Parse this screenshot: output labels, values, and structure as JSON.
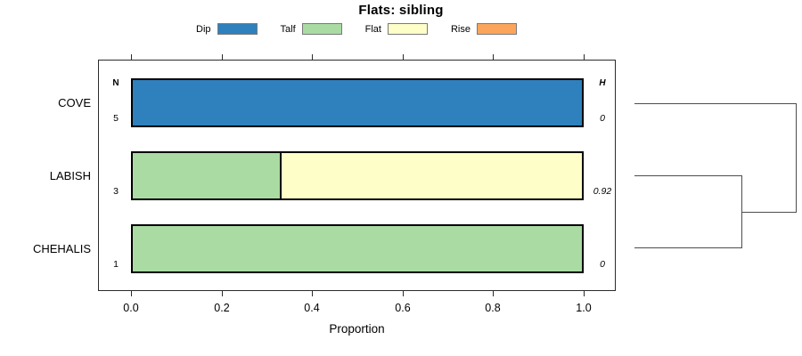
{
  "title": "Flats: sibling",
  "legend": [
    {
      "label": "Dip"
    },
    {
      "label": "Talf"
    },
    {
      "label": "Flat"
    },
    {
      "label": "Rise"
    }
  ],
  "colors": {
    "Dip": "#2E81BC",
    "Talf": "#A9DBA3",
    "Flat": "#FEFEC8",
    "Rise": "#FBA55C",
    "bar_border": "#000000",
    "box_border": "#2b2b2b",
    "dendrogram_line": "#4d4d4d"
  },
  "columns": {
    "n": "N",
    "h": "H"
  },
  "axis": {
    "label": "Proportion",
    "ticks": [
      "0.0",
      "0.2",
      "0.4",
      "0.6",
      "0.8",
      "1.0"
    ]
  },
  "chart_data": {
    "type": "bar",
    "orientation": "horizontal",
    "stacked": true,
    "title": "Flats: sibling",
    "xlabel": "Proportion",
    "xlim": [
      0,
      1
    ],
    "grid": false,
    "legend_position": "top",
    "legend_entries": [
      "Dip",
      "Talf",
      "Flat",
      "Rise"
    ],
    "categories": [
      "COVE",
      "LABISH",
      "CHEHALIS"
    ],
    "rows": [
      {
        "name": "COVE",
        "n": "5",
        "h": "0",
        "segments": [
          {
            "category": "Dip",
            "value": 1.0
          }
        ]
      },
      {
        "name": "LABISH",
        "n": "3",
        "h": "0.92",
        "segments": [
          {
            "category": "Talf",
            "value": 0.333
          },
          {
            "category": "Flat",
            "value": 0.667
          }
        ]
      },
      {
        "name": "CHEHALIS",
        "n": "1",
        "h": "0",
        "segments": [
          {
            "category": "Talf",
            "value": 1.0
          }
        ]
      }
    ],
    "dendrogram": {
      "first_join": [
        "LABISH",
        "CHEHALIS"
      ],
      "second_join": [
        "COVE",
        "LABISH+CHEHALIS"
      ]
    }
  }
}
